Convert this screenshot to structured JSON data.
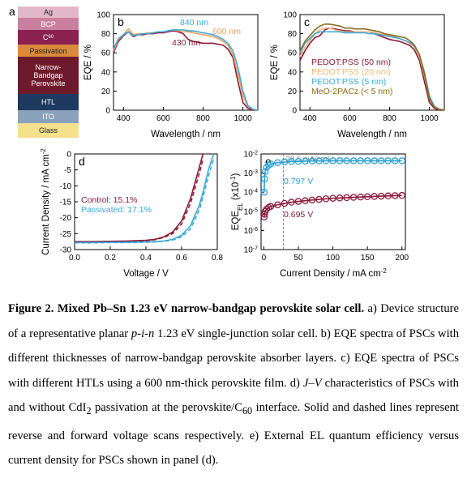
{
  "device_stack": {
    "label": "a",
    "layers": [
      "Ag",
      "BCP",
      [
        "C",
        "60"
      ],
      "Passivation",
      "Narrow-Bandgap Perovskite",
      "HTL",
      "ITO",
      "Glass"
    ]
  },
  "chart_data": [
    {
      "type": "line",
      "label": "b",
      "xlabel": "Wavelength / nm",
      "ylabel": "EQE / %",
      "x": [
        350,
        375,
        400,
        425,
        450,
        475,
        500,
        525,
        550,
        575,
        600,
        625,
        650,
        675,
        700,
        725,
        750,
        775,
        800,
        825,
        850,
        875,
        900,
        925,
        950,
        975,
        1000,
        1025,
        1050,
        1075
      ],
      "xlim": [
        350,
        1075
      ],
      "xticks": [
        400,
        600,
        800,
        1000
      ],
      "ylim": [
        0,
        100
      ],
      "yticks": [
        0,
        20,
        40,
        60,
        80,
        100
      ],
      "series": [
        {
          "name": "430 nm",
          "color": "#8b1a3a",
          "values": [
            60,
            72,
            78,
            82,
            77,
            79,
            79,
            80,
            80,
            81,
            81,
            82,
            83,
            82,
            80,
            74,
            72,
            71,
            70,
            70,
            70,
            69,
            68,
            64,
            55,
            30,
            8,
            2,
            0,
            0
          ]
        },
        {
          "name": "600 nm",
          "color": "#f0a060",
          "values": [
            62,
            74,
            79,
            85,
            79,
            80,
            80,
            81,
            81,
            82,
            82,
            83,
            84,
            83,
            82,
            82,
            81,
            80,
            79,
            78,
            77,
            75,
            72,
            68,
            58,
            38,
            15,
            4,
            1,
            0
          ]
        },
        {
          "name": "840 nm",
          "color": "#3aa8d8",
          "values": [
            64,
            75,
            79,
            82,
            78,
            79,
            80,
            80,
            81,
            82,
            82,
            83,
            84,
            84,
            84,
            83,
            83,
            82,
            81,
            80,
            79,
            77,
            74,
            70,
            62,
            45,
            20,
            5,
            1,
            0
          ]
        }
      ]
    },
    {
      "type": "line",
      "label": "c",
      "xlabel": "Wavelength / nm",
      "ylabel": "EQE / %",
      "legend": "lower left",
      "x": [
        350,
        375,
        400,
        425,
        450,
        475,
        500,
        525,
        550,
        575,
        600,
        625,
        650,
        675,
        700,
        725,
        750,
        775,
        800,
        825,
        850,
        875,
        900,
        925,
        950,
        975,
        1000,
        1025,
        1050,
        1075
      ],
      "xlim": [
        350,
        1075
      ],
      "xticks": [
        400,
        600,
        800,
        1000
      ],
      "ylim": [
        0,
        100
      ],
      "yticks": [
        0,
        20,
        40,
        60,
        80,
        100
      ],
      "series": [
        {
          "name": "PEDOT:PSS (50 nm)",
          "color": "#8b1a3a",
          "values": [
            52,
            62,
            70,
            76,
            78,
            84,
            86,
            85,
            84,
            83,
            83,
            82,
            82,
            82,
            82,
            80,
            78,
            76,
            74,
            73,
            72,
            70,
            68,
            63,
            52,
            30,
            8,
            2,
            0,
            0
          ]
        },
        {
          "name": "PEDOT:PSS (20 nm)",
          "color": "#f0b878",
          "values": [
            56,
            66,
            73,
            80,
            84,
            86,
            86,
            84,
            83,
            82,
            82,
            82,
            82,
            82,
            82,
            81,
            80,
            79,
            78,
            77,
            75,
            73,
            70,
            66,
            56,
            36,
            12,
            3,
            1,
            0
          ]
        },
        {
          "name": "PEDOT:PSS (5 nm)",
          "color": "#3aa8d8",
          "values": [
            60,
            70,
            75,
            80,
            82,
            82,
            82,
            82,
            82,
            81,
            81,
            81,
            81,
            81,
            80,
            80,
            79,
            78,
            77,
            76,
            75,
            73,
            71,
            67,
            58,
            40,
            15,
            4,
            1,
            0
          ]
        },
        {
          "name": "MeO-2PACz (< 5 nm)",
          "color": "#8b6a1a",
          "values": [
            62,
            72,
            78,
            84,
            88,
            90,
            90,
            89,
            88,
            86,
            86,
            85,
            85,
            85,
            84,
            83,
            82,
            80,
            79,
            78,
            77,
            76,
            73,
            68,
            58,
            38,
            12,
            3,
            1,
            0
          ]
        }
      ]
    },
    {
      "type": "line",
      "label": "d",
      "xlabel": "Voltage / V",
      "ylabel": [
        "Current Density / mA cm",
        "-2"
      ],
      "x": [
        0,
        0.1,
        0.2,
        0.3,
        0.4,
        0.45,
        0.5,
        0.55,
        0.6,
        0.65,
        0.7,
        0.72,
        0.75,
        0.78,
        0.8
      ],
      "xlim": [
        0,
        0.8
      ],
      "xticks": [
        {
          "value": 0,
          "label": "0.0"
        },
        0.2,
        0.4,
        0.6,
        0.8
      ],
      "ylim": [
        -30,
        0
      ],
      "yticks": [
        -30,
        -25,
        -20,
        -15,
        -10,
        -5,
        0
      ],
      "series": [
        {
          "name": "Control: 15.1%",
          "color": "#8b1a3a",
          "values": [
            -27.5,
            -27.5,
            -27.4,
            -27.3,
            -27.1,
            -26.8,
            -26,
            -24.5,
            -21,
            -14,
            -4,
            0,
            null,
            null,
            null
          ],
          "values_forward": [
            -27.6,
            -27.6,
            -27.5,
            -27.4,
            -27.2,
            -26.9,
            -26.2,
            -25,
            -22,
            -15.5,
            -6,
            -1.5,
            null,
            null,
            null
          ]
        },
        {
          "name": "Passivated: 17.1%",
          "color": "#3aa8d8",
          "values": [
            -27.8,
            -27.8,
            -27.7,
            -27.7,
            -27.6,
            -27.5,
            -27.3,
            -26.8,
            -25.5,
            -22.5,
            -16,
            -12,
            -5,
            0,
            null
          ],
          "values_forward": [
            -27.9,
            -27.9,
            -27.8,
            -27.8,
            -27.7,
            -27.6,
            -27.4,
            -27,
            -26,
            -23.5,
            -17.5,
            -13.5,
            -7,
            -1.5,
            null
          ]
        }
      ]
    },
    {
      "type": "line",
      "label": "e",
      "xlabel": [
        "Current Density / mA cm",
        "-2"
      ],
      "ylabel": [
        "EQE",
        "EL",
        " (x10",
        "-1",
        ")"
      ],
      "yscale": "log",
      "marker": "circle",
      "x": [
        0.5,
        1,
        2,
        4,
        7,
        10,
        20,
        30,
        40,
        50,
        60,
        70,
        80,
        90,
        100,
        110,
        120,
        130,
        140,
        150,
        160,
        170,
        180,
        190,
        200
      ],
      "xlim": [
        -4,
        205
      ],
      "xticks": [
        0,
        50,
        100,
        150,
        200
      ],
      "ylim": [
        1e-07,
        0.01
      ],
      "yticks": [
        {
          "value": 0.01,
          "label": "10-2"
        },
        {
          "value": 0.001,
          "label": "10-3"
        },
        {
          "value": 0.0001,
          "label": "10-4"
        },
        {
          "value": 1e-05,
          "label": "10-5"
        },
        {
          "value": 1e-06,
          "label": "10-6"
        },
        {
          "value": 1e-07,
          "label": "10-7"
        }
      ],
      "vline": {
        "x": 28.5,
        "label": "28.5 mA/cm²"
      },
      "series": [
        {
          "name": "0.797 V",
          "color": "#2aa0d4",
          "values": [
            0.0001,
            0.0005,
            0.0012,
            0.002,
            0.0026,
            0.003,
            0.0035,
            0.0038,
            0.004,
            0.0041,
            0.0042,
            0.0043,
            0.0043,
            0.0044,
            0.0044,
            0.0044,
            0.0044,
            0.0044,
            0.0044,
            0.0044,
            0.0044,
            0.0044,
            0.0044,
            0.0044,
            0.0044
          ]
        },
        {
          "name": "0.695 V",
          "color": "#8b1a3a",
          "values": [
            5e-06,
            7e-06,
            1e-05,
            1.3e-05,
            1.6e-05,
            1.8e-05,
            2.2e-05,
            2.6e-05,
            3e-05,
            3.3e-05,
            3.6e-05,
            3.9e-05,
            4.2e-05,
            4.5e-05,
            4.8e-05,
            5e-05,
            5.2e-05,
            5.4e-05,
            5.6e-05,
            5.8e-05,
            6e-05,
            6.2e-05,
            6.4e-05,
            6.6e-05,
            6.8e-05
          ]
        }
      ]
    }
  ],
  "caption": [
    "Figure 2.",
    "Mixed Pb–Sn 1.23 eV narrow-bandgap perovskite solar cell.",
    " a) Device structure of a representative planar ",
    "p-i-n",
    " 1.23 eV single-junction solar cell. b) EQE spectra of PSCs with different thicknesses of narrow-bandgap perovskite absorber layers. c) EQE spectra of PSCs with different HTLs using a 600 nm-thick perovskite film. d) ",
    "J–V",
    " characteristics of PSCs with and without CdI",
    "2",
    " passivation at the perovskite/C",
    "60",
    " interface. Solid and dashed lines represent reverse and forward voltage scans respectively. e) External EL quantum efficiency versus current density for PSCs shown in panel (d)."
  ]
}
